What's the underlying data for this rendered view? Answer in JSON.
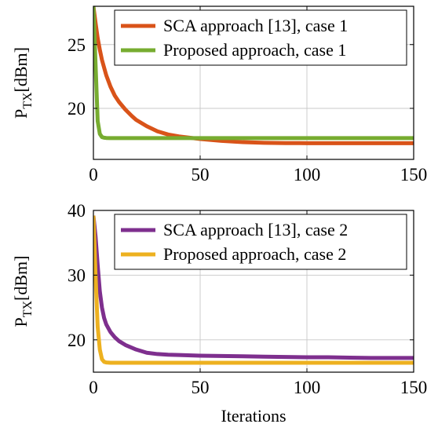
{
  "chart_data": [
    {
      "type": "line",
      "xlabel": "",
      "ylabel": {
        "main": "P",
        "sub": "TX",
        "unit": "[dBm]"
      },
      "xlim": [
        0,
        150
      ],
      "ylim": [
        16,
        28
      ],
      "xticks": [
        0,
        50,
        100,
        150
      ],
      "yticks": [
        20,
        25
      ],
      "grid": true,
      "legend_position": "top-right",
      "series": [
        {
          "name": "SCA approach [13], case 1",
          "color": "#D95319",
          "x": [
            0,
            1,
            2,
            3,
            4,
            5,
            6,
            8,
            10,
            12,
            15,
            18,
            20,
            25,
            30,
            35,
            40,
            45,
            50,
            60,
            70,
            80,
            90,
            100,
            110,
            120,
            130,
            140,
            150
          ],
          "y": [
            28.0,
            26.7,
            25.5,
            24.6,
            23.8,
            23.2,
            22.6,
            21.7,
            21.0,
            20.5,
            19.9,
            19.4,
            19.1,
            18.6,
            18.2,
            17.95,
            17.8,
            17.7,
            17.6,
            17.45,
            17.35,
            17.3,
            17.28,
            17.27,
            17.27,
            17.27,
            17.27,
            17.27,
            17.27
          ]
        },
        {
          "name": "Proposed approach, case 1",
          "color": "#77AC30",
          "x": [
            0,
            1,
            2,
            3,
            4,
            5,
            6,
            8,
            10,
            20,
            50,
            100,
            150
          ],
          "y": [
            28.0,
            23.5,
            19.0,
            18.0,
            17.75,
            17.7,
            17.68,
            17.67,
            17.67,
            17.67,
            17.67,
            17.67,
            17.67
          ]
        }
      ]
    },
    {
      "type": "line",
      "xlabel": "Iterations",
      "ylabel": {
        "main": "P",
        "sub": "TX",
        "unit": "[dBm]"
      },
      "xlim": [
        0,
        150
      ],
      "ylim": [
        15,
        40
      ],
      "xticks": [
        0,
        50,
        100,
        150
      ],
      "yticks": [
        20,
        30,
        40
      ],
      "grid": true,
      "legend_position": "top-right",
      "series": [
        {
          "name": "SCA approach [13], case 2",
          "color": "#7E2F8E",
          "x": [
            0,
            1,
            2,
            3,
            4,
            5,
            6,
            8,
            10,
            12,
            15,
            20,
            25,
            30,
            35,
            40,
            50,
            60,
            70,
            80,
            90,
            100,
            110,
            120,
            130,
            140,
            150
          ],
          "y": [
            39.2,
            36.0,
            31.5,
            27.5,
            25.0,
            23.4,
            22.4,
            21.2,
            20.4,
            19.8,
            19.2,
            18.5,
            18.0,
            17.8,
            17.7,
            17.65,
            17.55,
            17.5,
            17.45,
            17.4,
            17.35,
            17.3,
            17.3,
            17.25,
            17.2,
            17.2,
            17.2
          ]
        },
        {
          "name": "Proposed approach, case 2",
          "color": "#EDB120",
          "x": [
            0,
            1,
            2,
            3,
            4,
            5,
            6,
            8,
            10,
            20,
            50,
            100,
            150
          ],
          "y": [
            39.2,
            30.0,
            22.0,
            18.5,
            17.0,
            16.6,
            16.5,
            16.45,
            16.45,
            16.45,
            16.45,
            16.45,
            16.45
          ]
        }
      ]
    }
  ]
}
